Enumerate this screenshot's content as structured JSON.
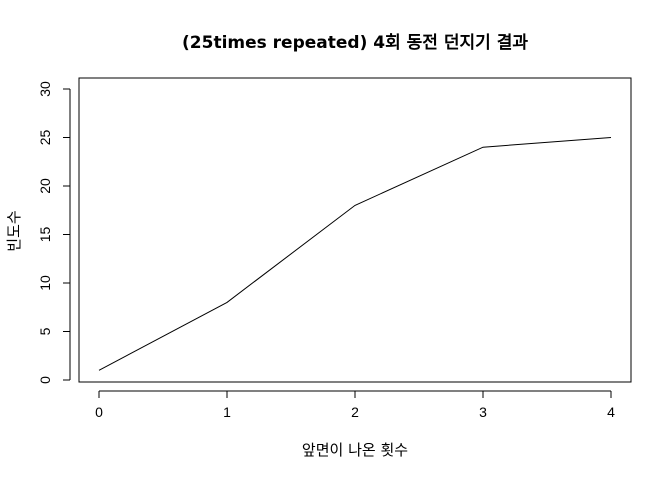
{
  "chart_data": {
    "type": "line",
    "title": "(25times repeated) 4회 동전 던지기 결과",
    "xlabel": "앞면이 나온 횟수",
    "ylabel": "빈도수",
    "x": [
      0,
      1,
      2,
      3,
      4
    ],
    "series": [
      {
        "values": [
          1,
          8,
          18,
          24,
          25
        ],
        "color": "#000000"
      }
    ],
    "xlim": [
      0,
      4
    ],
    "ylim": [
      0,
      30
    ],
    "xticks": [
      "0",
      "1",
      "2",
      "3",
      "4"
    ],
    "yticks": [
      "0",
      "5",
      "10",
      "15",
      "20",
      "25",
      "30"
    ],
    "grid": false,
    "legend": "none"
  }
}
